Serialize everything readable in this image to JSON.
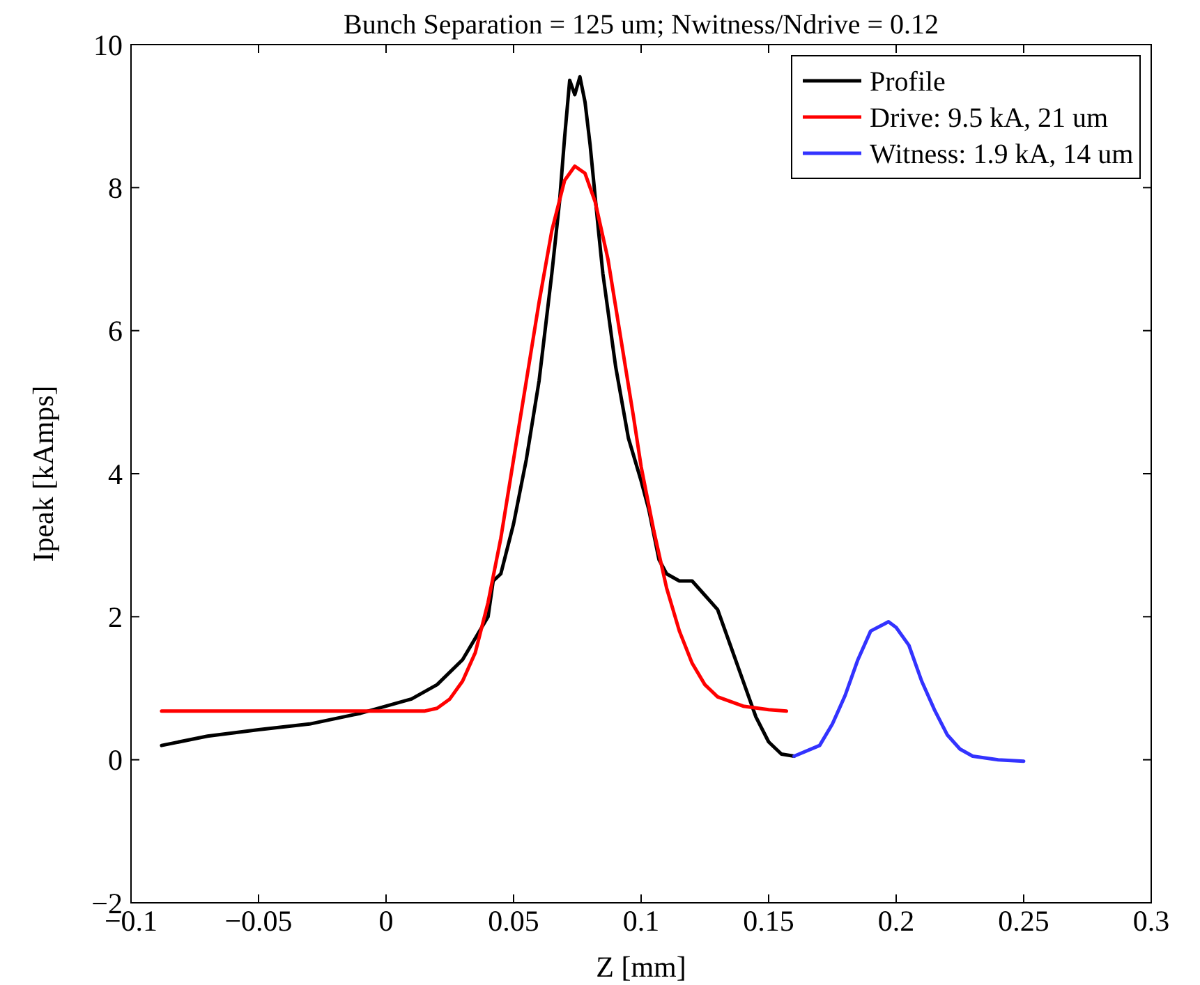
{
  "chart_data": {
    "type": "line",
    "title": "Bunch Separation = 125 um; Nwitness/Ndrive = 0.12",
    "xlabel": "Z [mm]",
    "ylabel": "Ipeak [kAmps]",
    "xlim": [
      -0.1,
      0.3
    ],
    "xticks": [
      {
        "value": -0.1,
        "label": "−0.1"
      },
      {
        "value": -0.05,
        "label": "−0.05"
      },
      0,
      0.05,
      0.1,
      0.15,
      0.2,
      0.25,
      0.3
    ],
    "ylim": [
      -2,
      10
    ],
    "yticks": [
      {
        "value": -2,
        "label": "−2"
      },
      0,
      2,
      4,
      6,
      8,
      10
    ],
    "grid": false,
    "legend": "top right",
    "marker": "none",
    "line_style": "solid",
    "series": [
      {
        "name": "Profile",
        "color": "#000000",
        "x": [
          -0.088,
          -0.07,
          -0.05,
          -0.03,
          -0.01,
          0,
          0.01,
          0.02,
          0.03,
          0.04,
          0.042,
          0.045,
          0.05,
          0.055,
          0.06,
          0.065,
          0.068,
          0.07,
          0.072,
          0.074,
          0.076,
          0.078,
          0.08,
          0.083,
          0.085,
          0.09,
          0.095,
          0.1,
          0.103,
          0.107,
          0.11,
          0.115,
          0.12,
          0.125,
          0.13,
          0.135,
          0.14,
          0.145,
          0.15,
          0.155,
          0.16
        ],
        "values": [
          0.2,
          0.33,
          0.42,
          0.5,
          0.65,
          0.75,
          0.85,
          1.05,
          1.4,
          2.0,
          2.5,
          2.6,
          3.3,
          4.2,
          5.3,
          6.8,
          7.8,
          8.7,
          9.5,
          9.3,
          9.55,
          9.2,
          8.6,
          7.5,
          6.8,
          5.5,
          4.5,
          3.9,
          3.5,
          2.8,
          2.6,
          2.5,
          2.5,
          2.3,
          2.1,
          1.6,
          1.1,
          0.6,
          0.25,
          0.08,
          0.05
        ]
      },
      {
        "name": "Drive: 9.5 kA, 21 um",
        "color": "#ff0000",
        "x": [
          -0.088,
          0.015,
          0.02,
          0.025,
          0.03,
          0.035,
          0.04,
          0.045,
          0.05,
          0.055,
          0.06,
          0.065,
          0.07,
          0.074,
          0.078,
          0.082,
          0.087,
          0.092,
          0.097,
          0.1,
          0.105,
          0.11,
          0.115,
          0.12,
          0.125,
          0.13,
          0.14,
          0.15,
          0.157
        ],
        "values": [
          0.68,
          0.68,
          0.72,
          0.85,
          1.1,
          1.5,
          2.2,
          3.1,
          4.2,
          5.3,
          6.4,
          7.4,
          8.1,
          8.3,
          8.2,
          7.8,
          7.0,
          5.9,
          4.8,
          4.1,
          3.2,
          2.4,
          1.8,
          1.35,
          1.05,
          0.88,
          0.75,
          0.7,
          0.68
        ]
      },
      {
        "name": "Witness: 1.9 kA, 14 um",
        "color": "#3333ff",
        "x": [
          0.16,
          0.17,
          0.175,
          0.18,
          0.185,
          0.19,
          0.197,
          0.2,
          0.205,
          0.21,
          0.215,
          0.22,
          0.225,
          0.23,
          0.24,
          0.25
        ],
        "values": [
          0.05,
          0.2,
          0.5,
          0.9,
          1.4,
          1.8,
          1.93,
          1.85,
          1.6,
          1.1,
          0.7,
          0.35,
          0.15,
          0.05,
          0,
          -0.02
        ]
      }
    ]
  }
}
